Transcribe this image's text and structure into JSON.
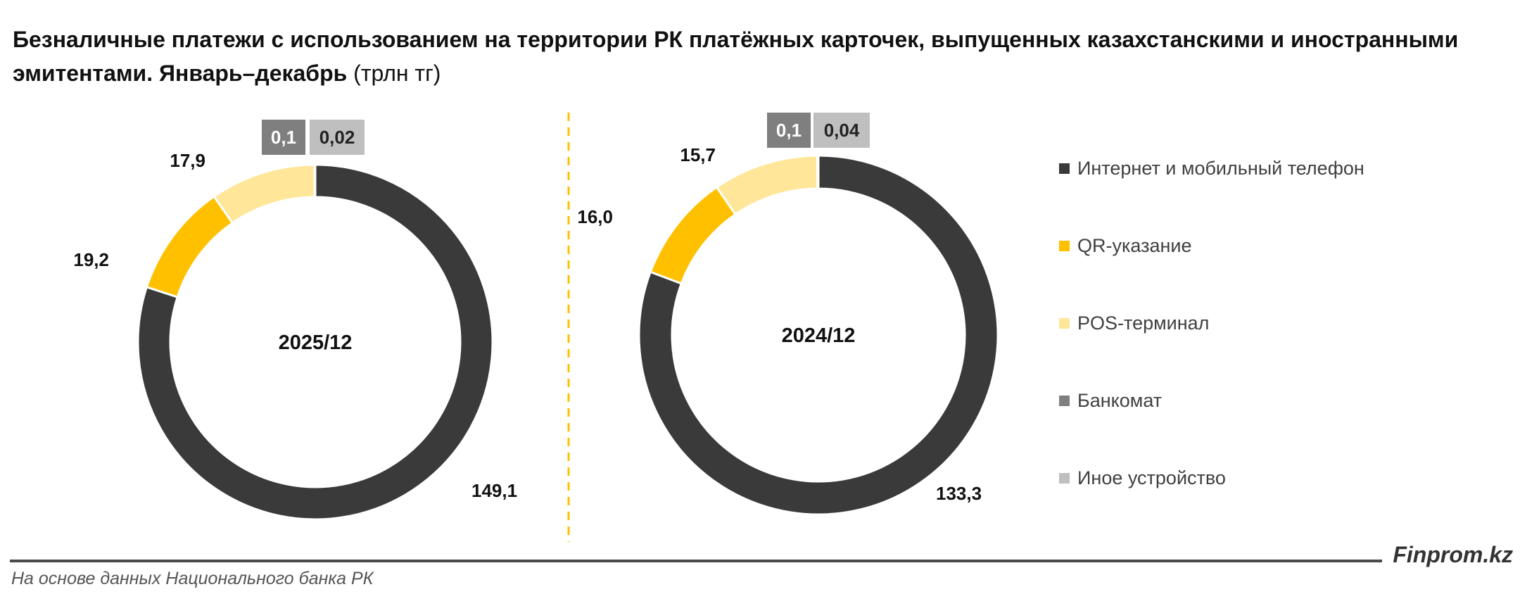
{
  "title": "Безналичные платежи с использованием на территории РК платёжных карточек, выпущенных казахстанскими и иностранными эмитентами. Январь–декабрь",
  "title_unit": "(трлн тг)",
  "legend": [
    {
      "label": "Интернет и мобильный телефон",
      "color": "#3a3a3a"
    },
    {
      "label": "QR-указание",
      "color": "#ffc000"
    },
    {
      "label": "POS-терминал",
      "color": "#ffe699"
    },
    {
      "label": "Банкомат",
      "color": "#7f7f7f"
    },
    {
      "label": "Иное устройство",
      "color": "#bfbfbf"
    }
  ],
  "chart_data": [
    {
      "type": "pie",
      "center_label": "2025/12",
      "categories": [
        "Интернет и мобильный телефон",
        "QR-указание",
        "POS-терминал",
        "Банкомат",
        "Иное устройство"
      ],
      "values": [
        149.1,
        19.2,
        17.9,
        0.1,
        0.02
      ],
      "value_labels": [
        "149,1",
        "19,2",
        "17,9",
        "0,1",
        "0,02"
      ]
    },
    {
      "type": "pie",
      "center_label": "2024/12",
      "categories": [
        "Интернет и мобильный телефон",
        "QR-указание",
        "POS-терминал",
        "Банкомат",
        "Иное устройство"
      ],
      "values": [
        133.3,
        16.0,
        15.7,
        0.1,
        0.04
      ],
      "value_labels": [
        "133,3",
        "16,0",
        "15,7",
        "0,1",
        "0,04"
      ]
    }
  ],
  "footer": {
    "brand": "Finprom.kz",
    "source": "На основе данных Национального банка РК"
  }
}
